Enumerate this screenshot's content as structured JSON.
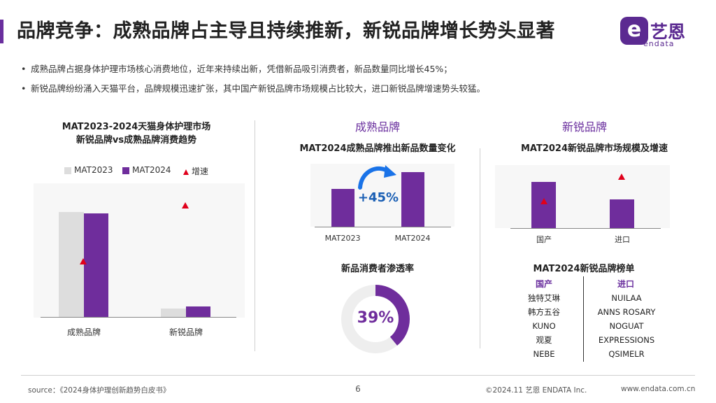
{
  "header": {
    "title": "品牌竞争：成熟品牌占主导且持续推新，新锐品牌增长势头显著",
    "logo_mark": "e",
    "logo_cn": "艺恩",
    "logo_en": "endata"
  },
  "bullets": [
    "成熟品牌占据身体护理市场核心消费地位，近年来持续出新，凭借新品吸引消费者，新品数量同比增长45%；",
    "新锐品牌纷纷涌入天猫平台，品牌规模迅速扩张，其中国产新锐品牌市场规模占比较大，进口新锐品牌增速势头较猛。"
  ],
  "bullet_symbol": "•",
  "left_chart": {
    "title_line1": "MAT2023-2024天猫身体护理市场",
    "title_line2": "新锐品牌vs成熟品牌消费趋势",
    "legend": [
      "MAT2023",
      "MAT2024",
      "增速"
    ],
    "colors": {
      "mat2023": "#dddddd",
      "mat2024": "#6f2d9c",
      "growth": "#e0001b"
    },
    "chart_data": {
      "type": "bar",
      "categories": [
        "成熟品牌",
        "新锐品牌"
      ],
      "series": [
        {
          "name": "MAT2023",
          "values": [
            100,
            6
          ]
        },
        {
          "name": "MAT2024",
          "values": [
            99,
            8
          ]
        }
      ],
      "growth_marker": [
        0,
        1
      ]
    }
  },
  "mature": {
    "section": "成熟品牌",
    "chart_title": "MAT2024成熟品牌推出新品数量变化",
    "growth_label": "+45%",
    "chart_data": {
      "type": "bar",
      "categories": [
        "MAT2023",
        "MAT2024"
      ],
      "values": [
        100,
        145
      ]
    },
    "penetration_title": "新品消费者渗透率",
    "penetration_value": "39%",
    "penetration_fraction": 0.39
  },
  "emerging": {
    "section": "新锐品牌",
    "chart_title": "MAT2024新锐品牌市场规模及增速",
    "chart_data": {
      "type": "bar",
      "categories": [
        "国产",
        "进口"
      ],
      "values": [
        100,
        62
      ],
      "growth_marker": [
        0,
        1
      ]
    },
    "ranking_title": "MAT2024新锐品牌榜单",
    "ranking_heads": [
      "国产",
      "进口"
    ],
    "domestic": [
      "独特艾琳",
      "韩方五谷",
      "KUNO",
      "观夏",
      "NEBE"
    ],
    "imported": [
      "NUILAA",
      "ANNS ROSARY",
      "NOGUAT",
      "EXPRESSIONS",
      "QSIMELR"
    ]
  },
  "footer": {
    "source": "source：《2024身体护理创新趋势白皮书》",
    "page": "6",
    "copyright": "©2024.11  艺恩 ENDATA Inc.",
    "website": "www.endata.com.cn"
  }
}
